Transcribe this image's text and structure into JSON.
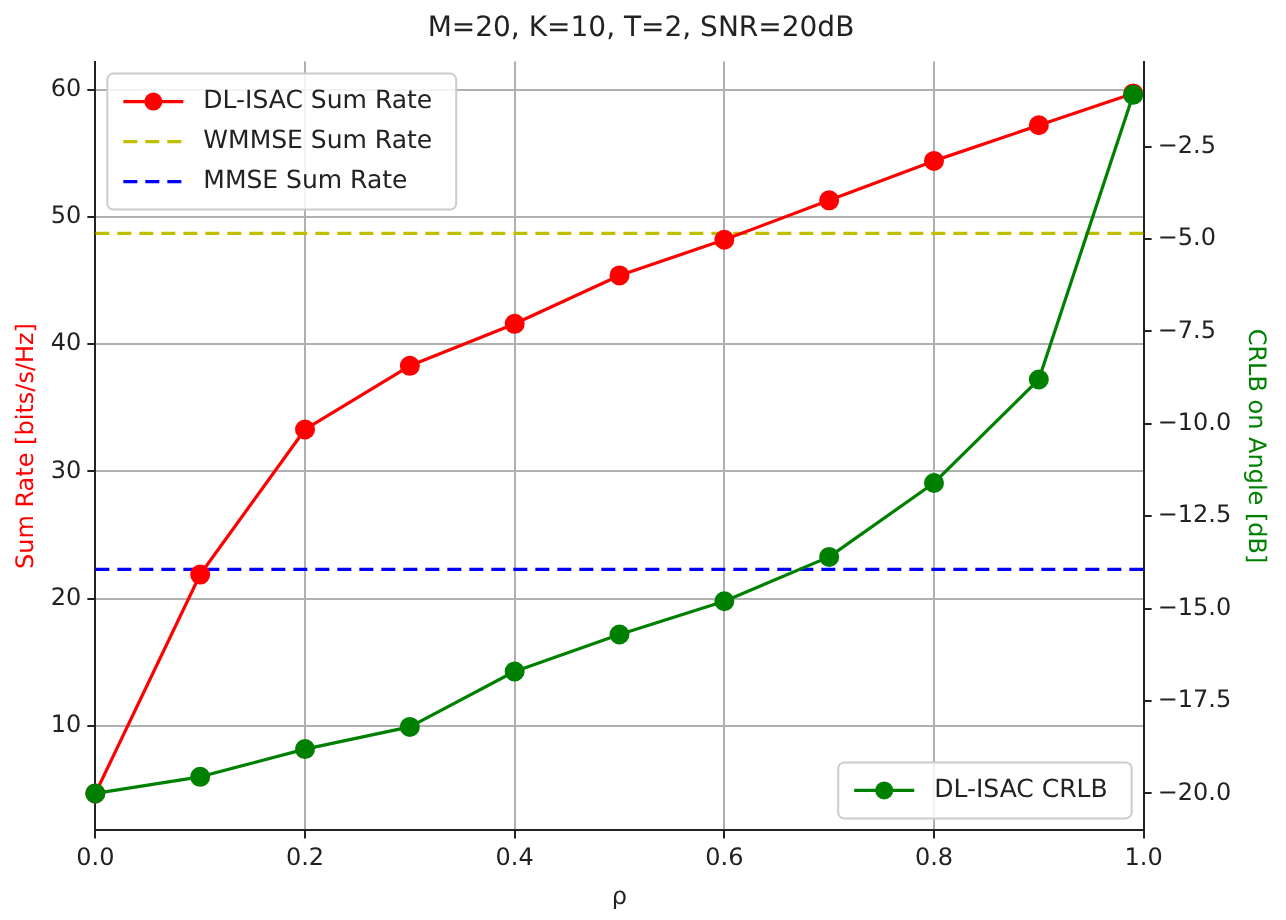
{
  "chart_data": {
    "type": "line",
    "title": "M=20, K=10, T=2, SNR=20dB",
    "xlabel": "ρ",
    "ylabel": "Sum Rate [bits/s/Hz]",
    "y2label": "CRLB on Angle [dB]",
    "x": [
      0,
      0.1,
      0.2,
      0.3,
      0.4,
      0.5,
      0.6,
      0.7,
      0.8,
      0.9,
      0.99
    ],
    "series": [
      {
        "name": "DL-ISAC Sum Rate",
        "color": "#ff0000",
        "marker": "circle",
        "line_style": "solid",
        "values": [
          4.7,
          21.9,
          33.3,
          38.3,
          41.6,
          45.4,
          48.2,
          51.3,
          54.4,
          57.2,
          59.7
        ]
      },
      {
        "name": "DL-ISAC CRLB",
        "color": "#008000",
        "marker": "circle",
        "line_style": "solid",
        "axis": "y2",
        "values": [
          -20.0,
          -19.55,
          -18.8,
          -18.2,
          -16.7,
          -15.7,
          -14.8,
          -13.6,
          -11.6,
          -8.8,
          -1.1
        ]
      }
    ],
    "xlim": [
      0,
      1
    ],
    "xticks": [
      {
        "value": 0,
        "label": "0.0"
      },
      {
        "value": 0.2,
        "label": "0.2"
      },
      {
        "value": 0.4,
        "label": "0.4"
      },
      {
        "value": 0.6,
        "label": "0.6"
      },
      {
        "value": 0.8,
        "label": "0.8"
      },
      {
        "value": 1,
        "label": "1.0"
      }
    ],
    "ylim": [
      1.8,
      62.2
    ],
    "yticks": [
      10,
      20,
      30,
      40,
      50,
      60
    ],
    "y2lim": [
      -21.0,
      -0.2
    ],
    "y2ticks": [
      {
        "value": -20,
        "label": "−20.0"
      },
      {
        "value": -17.5,
        "label": "−17.5"
      },
      {
        "value": -15,
        "label": "−15.0"
      },
      {
        "value": -12.5,
        "label": "−12.5"
      },
      {
        "value": -10,
        "label": "−10.0"
      },
      {
        "value": -7.5,
        "label": "−7.5"
      },
      {
        "value": -5,
        "label": "−5.0"
      },
      {
        "value": -2.5,
        "label": "−2.5"
      }
    ],
    "ref_lines": [
      {
        "axis": "y",
        "value": 48.7,
        "label": "WMMSE Sum Rate",
        "color": "#bfbf00",
        "line_style": "dashed"
      },
      {
        "axis": "y",
        "value": 22.3,
        "label": "MMSE Sum Rate",
        "color": "#0000ff",
        "line_style": "dashed"
      }
    ],
    "grid": true,
    "legend": "top left"
  }
}
